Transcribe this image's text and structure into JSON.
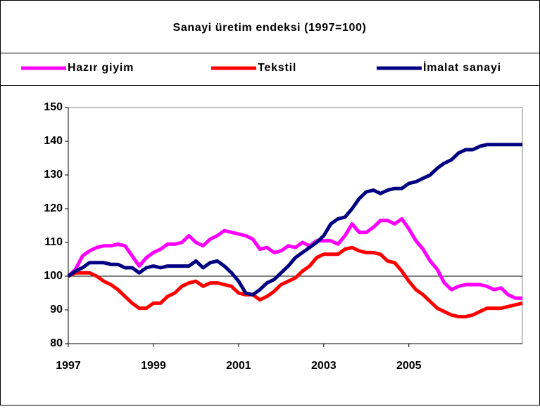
{
  "chart_data": {
    "type": "line",
    "title": "Sanayi üretim endeksi (1997=100)",
    "categories": [
      "1997",
      null,
      null,
      null,
      null,
      null,
      null,
      null,
      null,
      null,
      null,
      null,
      "1999",
      null,
      null,
      null,
      null,
      null,
      null,
      null,
      null,
      null,
      null,
      null,
      "2001",
      null,
      null,
      null,
      null,
      null,
      null,
      null,
      null,
      null,
      null,
      null,
      "2003",
      null,
      null,
      null,
      null,
      null,
      null,
      null,
      null,
      null,
      null,
      null,
      "2005",
      null,
      null,
      null,
      null,
      null,
      null,
      null,
      null,
      null,
      null,
      null,
      null,
      null,
      null,
      null,
      null
    ],
    "series": [
      {
        "name": "Hazır giyim",
        "color": "#ff00ff",
        "values": [
          100,
          102,
          106,
          107.5,
          108.5,
          109,
          109,
          109.5,
          109,
          106,
          103,
          105.5,
          107,
          108,
          109.5,
          109.5,
          110,
          112,
          110,
          109,
          111,
          112,
          113.5,
          113,
          112.5,
          112,
          111,
          108,
          108.5,
          107,
          107.5,
          109,
          108.5,
          110,
          109,
          110.5,
          110.5,
          110.5,
          109.5,
          112,
          115.5,
          113,
          113,
          114.5,
          116.5,
          116.5,
          115.5,
          117,
          114,
          110.5,
          108,
          104.5,
          102,
          98,
          96,
          97,
          97.5,
          97.5,
          97.5,
          97,
          96,
          96.5,
          94.5,
          93.5,
          93.5
        ]
      },
      {
        "name": "Tekstil",
        "color": "#ff0000",
        "values": [
          100,
          101,
          101,
          101,
          100,
          98.5,
          97.5,
          96,
          94,
          92,
          90.5,
          90.5,
          92,
          92,
          94,
          95,
          97,
          98,
          98.5,
          97,
          98,
          98,
          97.5,
          97,
          95,
          94.5,
          94.5,
          93,
          94,
          95.5,
          97.5,
          98.5,
          99.5,
          101.5,
          103,
          105.5,
          106.5,
          106.5,
          106.5,
          108,
          108.5,
          107.5,
          107,
          107,
          106.5,
          104.5,
          104,
          101.5,
          98.5,
          96,
          94.5,
          92.5,
          90.5,
          89.5,
          88.5,
          88,
          88,
          88.5,
          89.5,
          90.5,
          90.5,
          90.5,
          91,
          91.5,
          92
        ]
      },
      {
        "name": "İmalat sanayi",
        "color": "#000080",
        "values": [
          100,
          101.5,
          102.5,
          104,
          104,
          104,
          103.5,
          103.5,
          102.5,
          102.5,
          101,
          102.5,
          103,
          102.5,
          103,
          103,
          103,
          103,
          104.5,
          102.5,
          104,
          104.5,
          103,
          101,
          98.5,
          95,
          94.5,
          96,
          98,
          99,
          101,
          103,
          105.5,
          107,
          108.5,
          110,
          112,
          115.5,
          117,
          117.5,
          120,
          123,
          125,
          125.5,
          124.5,
          125.5,
          126,
          126,
          127.5,
          128,
          129,
          130,
          132,
          133.5,
          134.5,
          136.5,
          137.5,
          137.5,
          138.5,
          139,
          139,
          139,
          139,
          139,
          139
        ]
      }
    ],
    "ylim": [
      80,
      150
    ],
    "yticks": [
      80,
      90,
      100,
      110,
      120,
      130,
      140,
      150
    ],
    "reference_line": 100
  }
}
